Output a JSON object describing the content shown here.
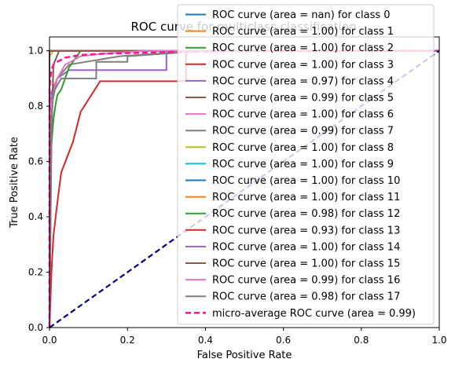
{
  "chart_data": {
    "type": "line",
    "title": "ROC curve for multiclass classification",
    "xlabel": "False Positive Rate",
    "ylabel": "True Positive Rate",
    "xlim": [
      0.0,
      1.0
    ],
    "ylim": [
      0.0,
      1.05
    ],
    "xticks": [
      "0.0",
      "0.2",
      "0.4",
      "0.6",
      "0.8",
      "1.0"
    ],
    "yticks": [
      "0.0",
      "0.2",
      "0.4",
      "0.6",
      "0.8",
      "1.0"
    ],
    "grid": false,
    "legend_position": "top-right",
    "series": [
      {
        "name": "ROC curve (area = nan) for class 0",
        "color": "#1f77b4",
        "dash": false,
        "points": [
          [
            0,
            1
          ],
          [
            1,
            1
          ]
        ]
      },
      {
        "name": "ROC curve (area = 1.00) for class 1",
        "color": "#ff7f0e",
        "dash": false,
        "points": [
          [
            0,
            0
          ],
          [
            0,
            1
          ],
          [
            1,
            1
          ]
        ]
      },
      {
        "name": "ROC curve (area = 1.00) for class 2",
        "color": "#2ca02c",
        "dash": false,
        "points": [
          [
            0,
            0
          ],
          [
            0,
            1
          ],
          [
            1,
            1
          ]
        ]
      },
      {
        "name": "ROC curve (area = 1.00) for class 3",
        "color": "#d62728",
        "dash": false,
        "points": [
          [
            0,
            0
          ],
          [
            0,
            1
          ],
          [
            1,
            1
          ]
        ]
      },
      {
        "name": "ROC curve (area = 0.97) for class 4",
        "color": "#9467bd",
        "dash": false,
        "points": [
          [
            0,
            0
          ],
          [
            0.005,
            0.85
          ],
          [
            0.02,
            0.9
          ],
          [
            0.05,
            0.93
          ],
          [
            0.3,
            0.93
          ],
          [
            0.3,
            1.0
          ],
          [
            1,
            1
          ]
        ]
      },
      {
        "name": "ROC curve (area = 0.99) for class 5",
        "color": "#8c564b",
        "dash": false,
        "points": [
          [
            0,
            0
          ],
          [
            0.005,
            0.67
          ],
          [
            0.01,
            0.95
          ],
          [
            0.025,
            1.0
          ],
          [
            1,
            1
          ]
        ]
      },
      {
        "name": "ROC curve (area = 1.00) for class 6",
        "color": "#e377c2",
        "dash": false,
        "points": [
          [
            0,
            0
          ],
          [
            0,
            1
          ],
          [
            1,
            1
          ]
        ]
      },
      {
        "name": "ROC curve (area = 0.99) for class 7",
        "color": "#7f7f7f",
        "dash": false,
        "points": [
          [
            0,
            0
          ],
          [
            0.005,
            0.8
          ],
          [
            0.02,
            0.9
          ],
          [
            0.05,
            0.95
          ],
          [
            0.18,
            0.98
          ],
          [
            0.38,
            1.0
          ],
          [
            1,
            1
          ]
        ]
      },
      {
        "name": "ROC curve (area = 1.00) for class 8",
        "color": "#bcbd22",
        "dash": false,
        "points": [
          [
            0,
            0
          ],
          [
            0,
            0.98
          ],
          [
            0.01,
            1.0
          ],
          [
            1,
            1
          ]
        ]
      },
      {
        "name": "ROC curve (area = 1.00) for class 9",
        "color": "#17becf",
        "dash": false,
        "points": [
          [
            0,
            0
          ],
          [
            0,
            1
          ],
          [
            1,
            1
          ]
        ]
      },
      {
        "name": "ROC curve (area = 1.00) for class 10",
        "color": "#1f77b4",
        "dash": false,
        "points": [
          [
            0,
            0
          ],
          [
            0,
            1
          ],
          [
            1,
            1
          ]
        ]
      },
      {
        "name": "ROC curve (area = 1.00) for class 11",
        "color": "#ff7f0e",
        "dash": false,
        "points": [
          [
            0,
            0
          ],
          [
            0,
            1
          ],
          [
            1,
            1
          ]
        ]
      },
      {
        "name": "ROC curve (area = 0.98) for class 12",
        "color": "#2ca02c",
        "dash": false,
        "points": [
          [
            0,
            0
          ],
          [
            0,
            0.44
          ],
          [
            0.005,
            0.66
          ],
          [
            0.01,
            0.75
          ],
          [
            0.015,
            0.8
          ],
          [
            0.02,
            0.84
          ],
          [
            0.03,
            0.86
          ],
          [
            0.04,
            0.9
          ],
          [
            0.05,
            0.94
          ],
          [
            0.065,
            0.97
          ],
          [
            0.08,
            1.0
          ],
          [
            1,
            1
          ]
        ]
      },
      {
        "name": "ROC curve (area = 0.93) for class 13",
        "color": "#d62728",
        "dash": false,
        "points": [
          [
            0,
            0
          ],
          [
            0.005,
            0.2
          ],
          [
            0.01,
            0.33
          ],
          [
            0.02,
            0.45
          ],
          [
            0.03,
            0.56
          ],
          [
            0.06,
            0.67
          ],
          [
            0.08,
            0.78
          ],
          [
            0.13,
            0.89
          ],
          [
            0.35,
            0.89
          ],
          [
            0.35,
            1.0
          ],
          [
            1,
            1
          ]
        ]
      },
      {
        "name": "ROC curve (area = 1.00) for class 14",
        "color": "#9467bd",
        "dash": false,
        "points": [
          [
            0,
            0
          ],
          [
            0,
            1
          ],
          [
            1,
            1
          ]
        ]
      },
      {
        "name": "ROC curve (area = 1.00) for class 15",
        "color": "#8c564b",
        "dash": false,
        "points": [
          [
            0,
            0
          ],
          [
            0,
            1
          ],
          [
            1,
            1
          ]
        ]
      },
      {
        "name": "ROC curve (area = 0.99) for class 16",
        "color": "#e377c2",
        "dash": false,
        "points": [
          [
            0,
            0
          ],
          [
            0,
            0.75
          ],
          [
            0.01,
            0.85
          ],
          [
            0.02,
            0.9
          ],
          [
            0.04,
            0.95
          ],
          [
            0.08,
            0.98
          ],
          [
            0.14,
            0.99
          ],
          [
            0.25,
            1.0
          ],
          [
            1,
            1
          ]
        ]
      },
      {
        "name": "ROC curve (area = 0.98) for class 17",
        "color": "#7f7f7f",
        "dash": false,
        "points": [
          [
            0,
            0
          ],
          [
            0.005,
            0.75
          ],
          [
            0.01,
            0.85
          ],
          [
            0.03,
            0.9
          ],
          [
            0.12,
            0.9
          ],
          [
            0.12,
            0.96
          ],
          [
            0.2,
            0.96
          ],
          [
            0.2,
            0.98
          ],
          [
            0.4,
            1.0
          ],
          [
            1,
            1
          ]
        ]
      },
      {
        "name": "micro-average ROC curve (area = 0.99)",
        "color": "#ff1493",
        "dash": true,
        "points": [
          [
            0,
            0
          ],
          [
            0,
            0.86
          ],
          [
            0.002,
            0.9
          ],
          [
            0.005,
            0.93
          ],
          [
            0.01,
            0.95
          ],
          [
            0.02,
            0.96
          ],
          [
            0.04,
            0.975
          ],
          [
            0.08,
            0.985
          ],
          [
            0.15,
            0.99
          ],
          [
            0.3,
            0.995
          ],
          [
            0.5,
            0.998
          ],
          [
            1,
            1
          ]
        ]
      }
    ],
    "reference_line": {
      "color": "#000080",
      "dash": true,
      "points": [
        [
          0,
          0
        ],
        [
          1,
          1
        ]
      ]
    }
  }
}
